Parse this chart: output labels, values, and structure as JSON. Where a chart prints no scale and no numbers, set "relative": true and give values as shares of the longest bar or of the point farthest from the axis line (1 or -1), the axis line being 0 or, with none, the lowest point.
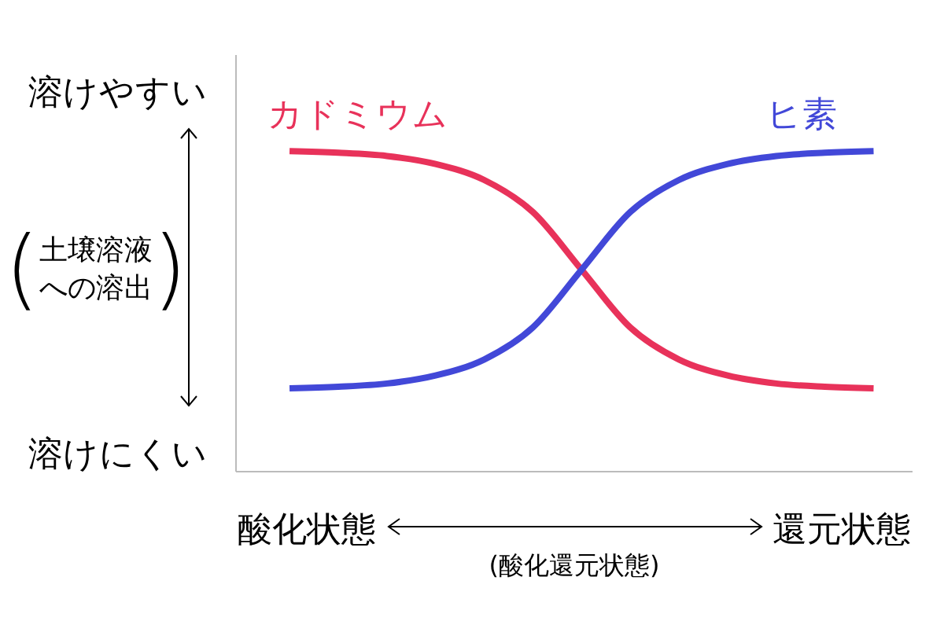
{
  "chart_data": {
    "type": "line",
    "relative": true,
    "xlabel": "(酸化還元状態)",
    "ylabel": "(土壌溶液への溶出)",
    "annotations": [
      "溶けやすい",
      "溶けにくい",
      "酸化状態",
      "還元状態"
    ],
    "legend": false,
    "grid": false,
    "marker": "none",
    "line_style": "solid",
    "categories": [
      null,
      null,
      null,
      null,
      null,
      null,
      null,
      null,
      null,
      null,
      null,
      null,
      null
    ],
    "series": [
      {
        "name": "カドミウム",
        "color": "#e8325a",
        "values": [
          1,
          0.995,
          0.985,
          0.96,
          0.91,
          0.81,
          0.63,
          0.45,
          0.35,
          0.3,
          0.275,
          0.265,
          0.26
        ]
      },
      {
        "name": "ヒ素",
        "color": "#4248d8",
        "values": [
          0.26,
          0.265,
          0.275,
          0.3,
          0.35,
          0.45,
          0.63,
          0.81,
          0.91,
          0.96,
          0.985,
          0.995,
          1
        ]
      }
    ]
  }
}
